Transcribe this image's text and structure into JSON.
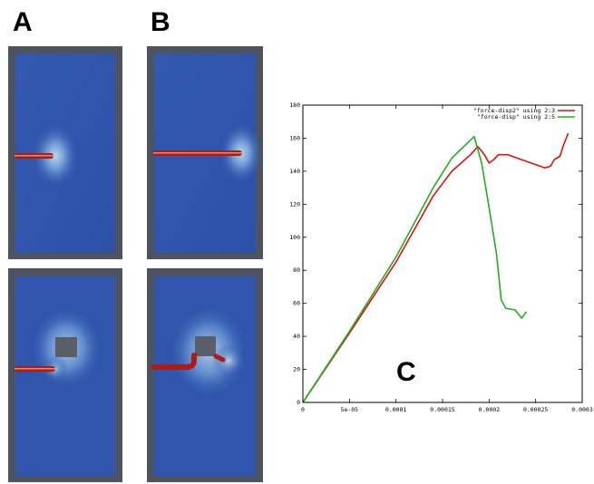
{
  "panels": {
    "a_label": "A",
    "b_label": "B",
    "c_label": "C"
  },
  "colors": {
    "frame": "#4e5360",
    "field": "#2e55ad",
    "crack": "#b01a10",
    "inclusion": "#5a5e66",
    "series_red": "#e01010",
    "series_green": "#20b020"
  },
  "chart_data": {
    "type": "line",
    "xlim": [
      0,
      0.0003
    ],
    "ylim": [
      0,
      180
    ],
    "x_ticks": [
      "0",
      "5e-05",
      "0.0001",
      "0.00015",
      "0.0002",
      "0.00025",
      "0.0003"
    ],
    "y_ticks": [
      "0",
      "20",
      "40",
      "60",
      "80",
      "100",
      "120",
      "140",
      "160",
      "180"
    ],
    "grid": false,
    "legend_position": "top-right",
    "series": [
      {
        "name": "\"force-disp2\" using 2:3",
        "color": "#e01010",
        "points": [
          [
            0,
            0
          ],
          [
            5e-05,
            42
          ],
          [
            0.0001,
            85
          ],
          [
            0.00014,
            125
          ],
          [
            0.00016,
            140
          ],
          [
            0.00018,
            150
          ],
          [
            0.000188,
            155
          ],
          [
            0.000195,
            150
          ],
          [
            0.0002,
            145
          ],
          [
            0.000205,
            147
          ],
          [
            0.00021,
            150
          ],
          [
            0.00022,
            150
          ],
          [
            0.00024,
            146
          ],
          [
            0.00026,
            142
          ],
          [
            0.000266,
            143
          ],
          [
            0.00027,
            147
          ],
          [
            0.000276,
            149
          ],
          [
            0.00028,
            156
          ],
          [
            0.000285,
            163
          ]
        ]
      },
      {
        "name": "\"force-disp\" using 2:5",
        "color": "#20b020",
        "points": [
          [
            0,
            0
          ],
          [
            5e-05,
            43
          ],
          [
            0.0001,
            88
          ],
          [
            0.00014,
            130
          ],
          [
            0.00016,
            148
          ],
          [
            0.000184,
            161
          ],
          [
            0.000192,
            145
          ],
          [
            0.0002,
            118
          ],
          [
            0.000208,
            90
          ],
          [
            0.000213,
            62
          ],
          [
            0.000218,
            57
          ],
          [
            0.000228,
            56
          ],
          [
            0.000235,
            51
          ],
          [
            0.00024,
            55
          ]
        ]
      }
    ]
  }
}
